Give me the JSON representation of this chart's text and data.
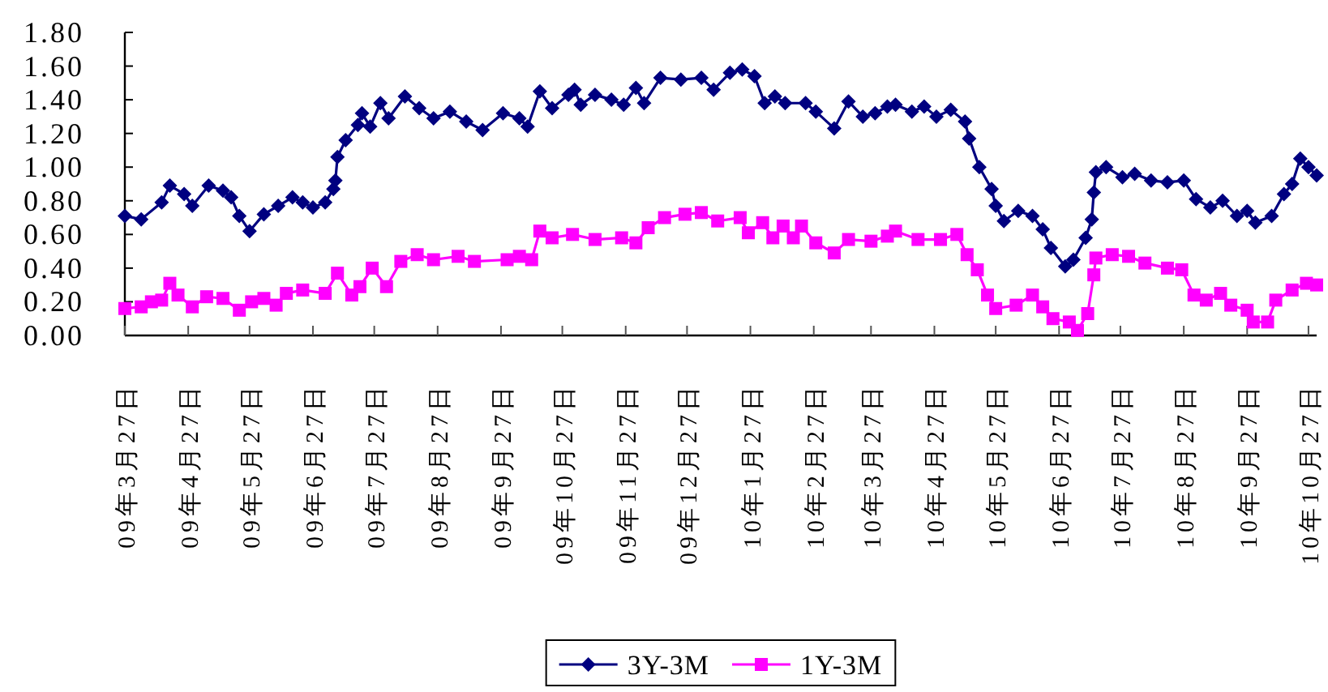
{
  "chart_data": {
    "type": "line",
    "series": [
      {
        "name": "3Y-3M",
        "color": "#000080",
        "marker": "diamond",
        "x": [
          "2009-03-27",
          "2009-04-04",
          "2009-04-14",
          "2009-04-18",
          "2009-04-25",
          "2009-04-29",
          "2009-05-07",
          "2009-05-14",
          "2009-05-18",
          "2009-05-22",
          "2009-05-27",
          "2009-06-03",
          "2009-06-10",
          "2009-06-17",
          "2009-06-22",
          "2009-06-27",
          "2009-07-03",
          "2009-07-07",
          "2009-07-08",
          "2009-07-09",
          "2009-07-13",
          "2009-07-19",
          "2009-07-21",
          "2009-07-25",
          "2009-07-30",
          "2009-08-03",
          "2009-08-11",
          "2009-08-18",
          "2009-08-25",
          "2009-09-02",
          "2009-09-10",
          "2009-09-18",
          "2009-09-28",
          "2009-10-06",
          "2009-10-10",
          "2009-10-16",
          "2009-10-22",
          "2009-10-30",
          "2009-11-02",
          "2009-11-05",
          "2009-11-12",
          "2009-11-20",
          "2009-11-26",
          "2009-12-02",
          "2009-12-06",
          "2009-12-14",
          "2009-12-24",
          "2010-01-03",
          "2010-01-09",
          "2010-01-17",
          "2010-01-23",
          "2010-01-29",
          "2010-02-03",
          "2010-02-08",
          "2010-02-13",
          "2010-02-23",
          "2010-02-28",
          "2010-03-09",
          "2010-03-16",
          "2010-03-23",
          "2010-03-29",
          "2010-04-04",
          "2010-04-08",
          "2010-04-16",
          "2010-04-22",
          "2010-04-28",
          "2010-05-05",
          "2010-05-12",
          "2010-05-14",
          "2010-05-19",
          "2010-05-25",
          "2010-05-27",
          "2010-05-31",
          "2010-06-07",
          "2010-06-14",
          "2010-06-19",
          "2010-06-23",
          "2010-06-30",
          "2010-07-04",
          "2010-07-10",
          "2010-07-13",
          "2010-07-14",
          "2010-07-15",
          "2010-07-20",
          "2010-07-28",
          "2010-08-03",
          "2010-08-11",
          "2010-08-19",
          "2010-08-27",
          "2010-09-02",
          "2010-09-09",
          "2010-09-15",
          "2010-09-22",
          "2010-09-27",
          "2010-10-01",
          "2010-10-09",
          "2010-10-15",
          "2010-10-19",
          "2010-10-23",
          "2010-10-27",
          "2010-10-31"
        ],
        "values": [
          0.71,
          0.69,
          0.79,
          0.89,
          0.84,
          0.77,
          0.89,
          0.86,
          0.82,
          0.71,
          0.62,
          0.72,
          0.77,
          0.82,
          0.79,
          0.76,
          0.79,
          0.87,
          0.92,
          1.06,
          1.16,
          1.25,
          1.32,
          1.24,
          1.38,
          1.29,
          1.42,
          1.35,
          1.29,
          1.33,
          1.27,
          1.22,
          1.32,
          1.29,
          1.24,
          1.45,
          1.35,
          1.43,
          1.46,
          1.37,
          1.43,
          1.4,
          1.37,
          1.47,
          1.38,
          1.53,
          1.52,
          1.53,
          1.46,
          1.56,
          1.58,
          1.54,
          1.38,
          1.42,
          1.38,
          1.38,
          1.33,
          1.23,
          1.39,
          1.3,
          1.32,
          1.36,
          1.37,
          1.33,
          1.36,
          1.3,
          1.34,
          1.27,
          1.17,
          1.0,
          0.87,
          0.77,
          0.68,
          0.74,
          0.71,
          0.63,
          0.52,
          0.41,
          0.45,
          0.58,
          0.69,
          0.85,
          0.97,
          1.0,
          0.94,
          0.96,
          0.92,
          0.91,
          0.92,
          0.81,
          0.76,
          0.8,
          0.71,
          0.74,
          0.67,
          0.71,
          0.84,
          0.9,
          1.05,
          1.0,
          0.95
        ]
      },
      {
        "name": "1Y-3M",
        "color": "#ff00ff",
        "marker": "square",
        "x": [
          "2009-03-27",
          "2009-04-04",
          "2009-04-09",
          "2009-04-14",
          "2009-04-18",
          "2009-04-22",
          "2009-04-29",
          "2009-05-06",
          "2009-05-14",
          "2009-05-22",
          "2009-05-28",
          "2009-06-03",
          "2009-06-09",
          "2009-06-14",
          "2009-06-22",
          "2009-07-03",
          "2009-07-09",
          "2009-07-16",
          "2009-07-20",
          "2009-07-26",
          "2009-08-02",
          "2009-08-09",
          "2009-08-17",
          "2009-08-25",
          "2009-09-06",
          "2009-09-14",
          "2009-09-30",
          "2009-10-06",
          "2009-10-12",
          "2009-10-16",
          "2009-10-22",
          "2009-11-01",
          "2009-11-12",
          "2009-11-25",
          "2009-12-02",
          "2009-12-08",
          "2009-12-16",
          "2009-12-26",
          "2010-01-03",
          "2010-01-11",
          "2010-01-22",
          "2010-01-26",
          "2010-02-02",
          "2010-02-07",
          "2010-02-12",
          "2010-02-17",
          "2010-02-21",
          "2010-02-28",
          "2010-03-09",
          "2010-03-16",
          "2010-03-27",
          "2010-04-04",
          "2010-04-08",
          "2010-04-19",
          "2010-04-30",
          "2010-05-08",
          "2010-05-13",
          "2010-05-18",
          "2010-05-23",
          "2010-05-27",
          "2010-06-06",
          "2010-06-14",
          "2010-06-19",
          "2010-06-24",
          "2010-07-02",
          "2010-07-06",
          "2010-07-11",
          "2010-07-14",
          "2010-07-15",
          "2010-07-23",
          "2010-07-31",
          "2010-08-08",
          "2010-08-19",
          "2010-08-26",
          "2010-09-01",
          "2010-09-07",
          "2010-09-14",
          "2010-09-19",
          "2010-09-27",
          "2010-09-30",
          "2010-10-07",
          "2010-10-11",
          "2010-10-19",
          "2010-10-26",
          "2010-10-31"
        ],
        "values": [
          0.16,
          0.17,
          0.2,
          0.21,
          0.31,
          0.24,
          0.17,
          0.23,
          0.22,
          0.15,
          0.2,
          0.22,
          0.18,
          0.25,
          0.27,
          0.25,
          0.37,
          0.24,
          0.29,
          0.4,
          0.29,
          0.44,
          0.48,
          0.45,
          0.47,
          0.44,
          0.45,
          0.47,
          0.45,
          0.62,
          0.58,
          0.6,
          0.57,
          0.58,
          0.55,
          0.64,
          0.7,
          0.72,
          0.73,
          0.68,
          0.7,
          0.61,
          0.67,
          0.58,
          0.65,
          0.58,
          0.65,
          0.55,
          0.49,
          0.57,
          0.56,
          0.59,
          0.62,
          0.57,
          0.57,
          0.6,
          0.48,
          0.39,
          0.24,
          0.16,
          0.18,
          0.24,
          0.17,
          0.1,
          0.08,
          0.03,
          0.13,
          0.36,
          0.46,
          0.48,
          0.47,
          0.43,
          0.4,
          0.39,
          0.24,
          0.21,
          0.25,
          0.18,
          0.15,
          0.08,
          0.08,
          0.21,
          0.27,
          0.31,
          0.3
        ]
      }
    ],
    "xlim": [
      "2009-03-27",
      "2010-10-31"
    ],
    "xticks": [
      {
        "value": "2009-03-27",
        "label": "09年3月27日"
      },
      {
        "value": "2009-04-27",
        "label": "09年4月27日"
      },
      {
        "value": "2009-05-27",
        "label": "09年5月27日"
      },
      {
        "value": "2009-06-27",
        "label": "09年6月27日"
      },
      {
        "value": "2009-07-27",
        "label": "09年7月27日"
      },
      {
        "value": "2009-08-27",
        "label": "09年8月27日"
      },
      {
        "value": "2009-09-27",
        "label": "09年9月27日"
      },
      {
        "value": "2009-10-27",
        "label": "09年10月27日"
      },
      {
        "value": "2009-11-27",
        "label": "09年11月27日"
      },
      {
        "value": "2009-12-27",
        "label": "09年12月27日"
      },
      {
        "value": "2010-01-27",
        "label": "10年1月27日"
      },
      {
        "value": "2010-02-27",
        "label": "10年2月27日"
      },
      {
        "value": "2010-03-27",
        "label": "10年3月27日"
      },
      {
        "value": "2010-04-27",
        "label": "10年4月27日"
      },
      {
        "value": "2010-05-27",
        "label": "10年5月27日"
      },
      {
        "value": "2010-06-27",
        "label": "10年6月27日"
      },
      {
        "value": "2010-07-27",
        "label": "10年7月27日"
      },
      {
        "value": "2010-08-27",
        "label": "10年8月27日"
      },
      {
        "value": "2010-09-27",
        "label": "10年9月27日"
      },
      {
        "value": "2010-10-27",
        "label": "10年10月27日"
      }
    ],
    "ylim": [
      0,
      1.8
    ],
    "yticks": [
      {
        "value": 0,
        "label": "0.00"
      },
      {
        "value": 0.2,
        "label": "0.20"
      },
      {
        "value": 0.4,
        "label": "0.40"
      },
      {
        "value": 0.6,
        "label": "0.60"
      },
      {
        "value": 0.8,
        "label": "0.80"
      },
      {
        "value": 1,
        "label": "1.00"
      },
      {
        "value": 1.2,
        "label": "1.20"
      },
      {
        "value": 1.4,
        "label": "1.40"
      },
      {
        "value": 1.6,
        "label": "1.60"
      },
      {
        "value": 1.8,
        "label": "1.80"
      }
    ],
    "legend": "bottom",
    "line_style": "solid"
  }
}
